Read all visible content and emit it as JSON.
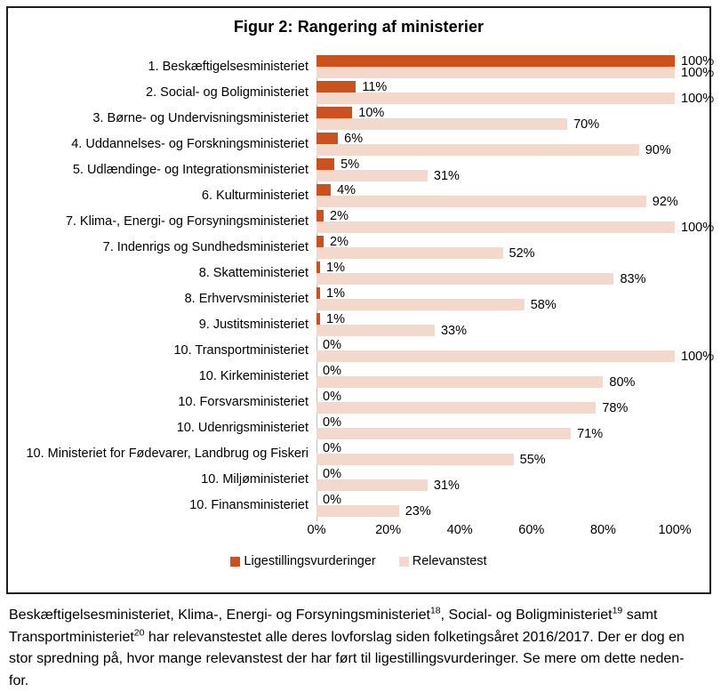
{
  "figure": {
    "title": "Figur 2: Rangering af ministerier",
    "border_color": "#1f1f1f"
  },
  "chart_data": {
    "type": "bar",
    "orientation": "horizontal",
    "title": "Figur 2: Rangering af ministerier",
    "categories": [
      "1. Beskæftigelsesministeriet",
      "2. Social- og Boligministeriet",
      "3. Børne- og Undervisningsministeriet",
      "4. Uddannelses- og Forskningsministeriet",
      "5. Udlændinge- og Integrationsministeriet",
      "6. Kulturministeriet",
      "7. Klima-, Energi- og Forsyningsministeriet",
      "7. Indenrigs og Sundhedsministeriet",
      "8. Skatteministeriet",
      "8. Erhvervsministeriet",
      "9. Justitsministeriet",
      "10. Transportministeriet",
      "10. Kirkeministeriet",
      "10. Forsvarsministeriet",
      "10. Udenrigsministeriet",
      "10. Ministeriet for Fødevarer, Landbrug og Fiskeri",
      "10. Miljøministeriet",
      "10. Finansministeriet"
    ],
    "series": [
      {
        "name": "Ligestillingsvurderinger",
        "color": "#c9521e",
        "values": [
          100,
          11,
          10,
          6,
          5,
          4,
          2,
          2,
          1,
          1,
          1,
          0,
          0,
          0,
          0,
          0,
          0,
          0
        ]
      },
      {
        "name": "Relevanstest",
        "color": "#f3d9cb",
        "values": [
          100,
          100,
          70,
          90,
          31,
          92,
          100,
          52,
          83,
          58,
          33,
          100,
          80,
          78,
          71,
          55,
          31,
          23
        ]
      }
    ],
    "value_suffix": "%",
    "x_ticks": [
      "0%",
      "20%",
      "40%",
      "60%",
      "80%",
      "100%"
    ],
    "xlim": [
      0,
      100
    ],
    "axis_color": "#bfbfbf",
    "grid": false,
    "legend_position": "bottom"
  },
  "caption": {
    "lines": [
      [
        {
          "t": "Beskæftigelsesministeriet, Klima-, Energi- og Forsyningsministeriet"
        },
        {
          "sup": "18"
        },
        {
          "t": ", Social- og Boligministeriet"
        },
        {
          "sup": "19"
        },
        {
          "t": " samt"
        }
      ],
      [
        {
          "t": "Transportministeriet"
        },
        {
          "sup": "20"
        },
        {
          "t": " har relevanstestet alle deres lovforslag siden folketingsåret 2016/2017. Der er dog en"
        }
      ],
      [
        {
          "t": "stor spredning på, hvor mange relevanstest der har ført til ligestillingsvurderinger. Se mere om dette neden-"
        }
      ],
      [
        {
          "t": "for."
        }
      ]
    ]
  }
}
